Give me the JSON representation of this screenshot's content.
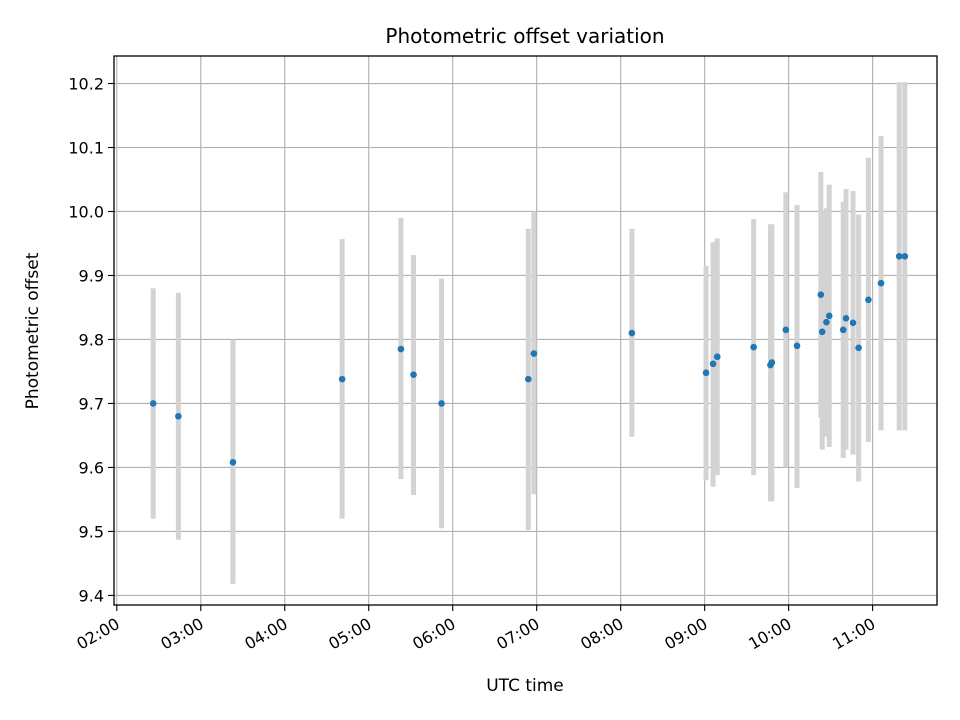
{
  "chart_data": {
    "type": "scatter",
    "title": "Photometric offset variation",
    "xlabel": "UTC time",
    "ylabel": "Photometric offset",
    "grid": true,
    "x_ticks": [
      "02:00",
      "03:00",
      "04:00",
      "05:00",
      "06:00",
      "07:00",
      "08:00",
      "09:00",
      "10:00",
      "11:00"
    ],
    "y_ticks": [
      "9.4",
      "9.5",
      "9.6",
      "9.7",
      "9.8",
      "9.9",
      "10.0",
      "10.1",
      "10.2"
    ],
    "xlim": [
      "01:58",
      "11:46"
    ],
    "ylim": [
      9.385,
      10.243
    ],
    "colors": {
      "point": "#1f77b4",
      "errorbar": "#d3d3d3",
      "grid": "#b0b0b0"
    },
    "series": [
      {
        "points": [
          {
            "x": "02:26",
            "y": 9.7,
            "ylow": 9.52,
            "yhigh": 9.88
          },
          {
            "x": "02:44",
            "y": 9.68,
            "ylow": 9.487,
            "yhigh": 9.873
          },
          {
            "x": "03:23",
            "y": 9.608,
            "ylow": 9.418,
            "yhigh": 9.8
          },
          {
            "x": "04:41",
            "y": 9.738,
            "ylow": 9.52,
            "yhigh": 9.957
          },
          {
            "x": "05:23",
            "y": 9.785,
            "ylow": 9.582,
            "yhigh": 9.99
          },
          {
            "x": "05:32",
            "y": 9.745,
            "ylow": 9.557,
            "yhigh": 9.932
          },
          {
            "x": "05:52",
            "y": 9.7,
            "ylow": 9.505,
            "yhigh": 9.895
          },
          {
            "x": "06:54",
            "y": 9.738,
            "ylow": 9.502,
            "yhigh": 9.973
          },
          {
            "x": "06:58",
            "y": 9.778,
            "ylow": 9.558,
            "yhigh": 10.0
          },
          {
            "x": "08:08",
            "y": 9.81,
            "ylow": 9.648,
            "yhigh": 9.973
          },
          {
            "x": "09:01",
            "y": 9.748,
            "ylow": 9.58,
            "yhigh": 9.915
          },
          {
            "x": "09:06",
            "y": 9.762,
            "ylow": 9.57,
            "yhigh": 9.952
          },
          {
            "x": "09:09",
            "y": 9.773,
            "ylow": 9.588,
            "yhigh": 9.958
          },
          {
            "x": "09:35",
            "y": 9.788,
            "ylow": 9.588,
            "yhigh": 9.988
          },
          {
            "x": "09:47",
            "y": 9.76,
            "ylow": 9.547,
            "yhigh": 9.98
          },
          {
            "x": "09:48",
            "y": 9.764,
            "ylow": 9.547,
            "yhigh": 9.98
          },
          {
            "x": "09:58",
            "y": 9.815,
            "ylow": 9.6,
            "yhigh": 10.03
          },
          {
            "x": "10:06",
            "y": 9.79,
            "ylow": 9.568,
            "yhigh": 10.01
          },
          {
            "x": "10:23",
            "y": 9.87,
            "ylow": 9.678,
            "yhigh": 10.062
          },
          {
            "x": "10:24",
            "y": 9.812,
            "ylow": 9.628,
            "yhigh": 10.0
          },
          {
            "x": "10:27",
            "y": 9.827,
            "ylow": 9.648,
            "yhigh": 10.005
          },
          {
            "x": "10:29",
            "y": 9.837,
            "ylow": 9.632,
            "yhigh": 10.042
          },
          {
            "x": "10:39",
            "y": 9.815,
            "ylow": 9.615,
            "yhigh": 10.015
          },
          {
            "x": "10:41",
            "y": 9.833,
            "ylow": 9.628,
            "yhigh": 10.035
          },
          {
            "x": "10:46",
            "y": 9.826,
            "ylow": 9.62,
            "yhigh": 10.032
          },
          {
            "x": "10:50",
            "y": 9.787,
            "ylow": 9.578,
            "yhigh": 9.995
          },
          {
            "x": "10:57",
            "y": 9.862,
            "ylow": 9.64,
            "yhigh": 10.084
          },
          {
            "x": "11:06",
            "y": 9.888,
            "ylow": 9.658,
            "yhigh": 10.118
          },
          {
            "x": "11:19",
            "y": 9.93,
            "ylow": 9.658,
            "yhigh": 10.202
          },
          {
            "x": "11:23",
            "y": 9.93,
            "ylow": 9.658,
            "yhigh": 10.202
          }
        ]
      }
    ]
  }
}
